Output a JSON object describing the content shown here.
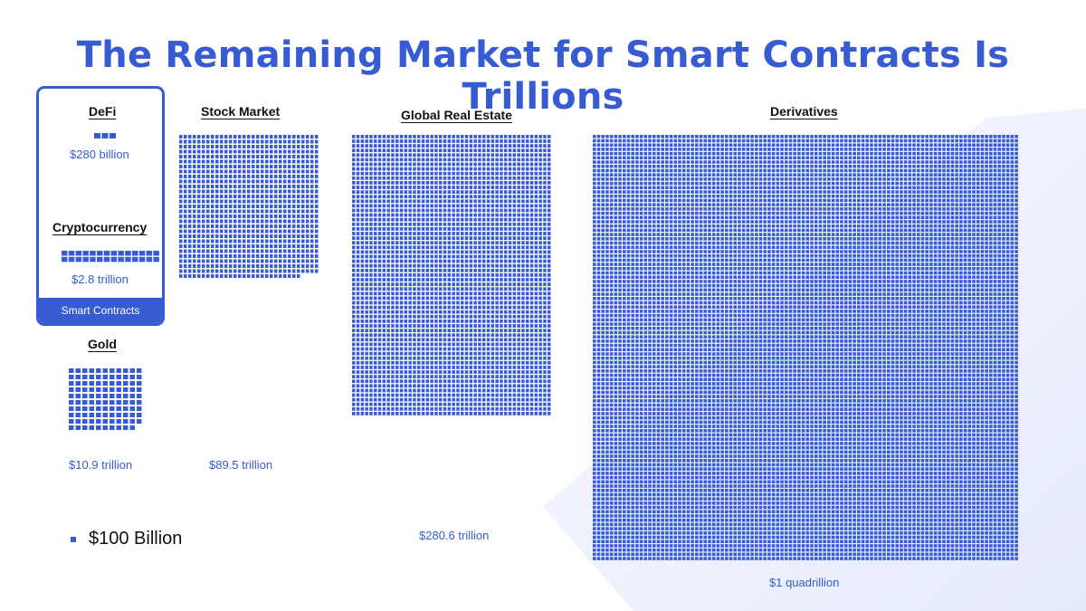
{
  "title": "The Remaining Market for Smart Contracts Is Trillions",
  "smart_contracts_label": "Smart Contracts",
  "legend": {
    "label": "$100 Billion",
    "unit_value_billion": 100
  },
  "colors": {
    "accent": "#375bd2",
    "background_tint": "#eef2fd",
    "text": "#111111"
  },
  "chart_data": {
    "type": "waffle",
    "unit": "$100 Billion per square",
    "categories": [
      {
        "name": "DeFi",
        "value_label": "$280 billion",
        "value_billion": 280,
        "squares": 3,
        "group": "Smart Contracts"
      },
      {
        "name": "Cryptocurrency",
        "value_label": "$2.8 trillion",
        "value_billion": 2800,
        "squares": 28,
        "group": "Smart Contracts"
      },
      {
        "name": "Gold",
        "value_label": "$10.9 trillion",
        "value_billion": 10900,
        "squares": 109
      },
      {
        "name": "Stock Market",
        "value_label": "$89.5 trillion",
        "value_billion": 89500,
        "squares": 895
      },
      {
        "name": "Global Real Estate",
        "value_label": "$280.6 trillion",
        "value_billion": 280600,
        "squares": 2806
      },
      {
        "name": "Derivatives",
        "value_label": "$1 quadrillion",
        "value_billion": 1000000,
        "squares": 10000
      }
    ]
  }
}
